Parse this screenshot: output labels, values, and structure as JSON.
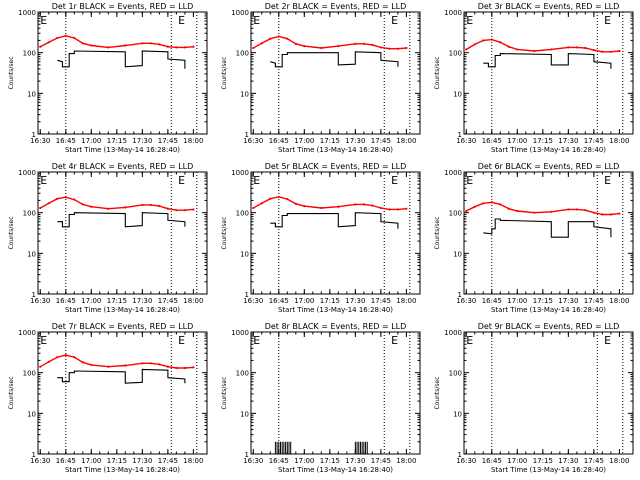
{
  "figure": {
    "time_labels": [
      "16:30",
      "16:45",
      "17:00",
      "17:15",
      "17:30",
      "17:45",
      "18:00"
    ],
    "y_tick_labels": [
      "1",
      "10",
      "100",
      "1000"
    ],
    "ylabel": "Counts/sec",
    "xlabel": "Start Time (13-May-14 16:28:40)",
    "marker_letter": "E"
  },
  "colors": {
    "events": "#000000",
    "lld": "#ff0000",
    "axes": "#000000"
  },
  "chart_data": [
    {
      "type": "line",
      "title": "Det 1r BLACK = Events, RED = LLD",
      "x_range": [
        "16:28:40",
        "18:08:00"
      ],
      "y_scale": "log",
      "ylim": [
        1,
        1000
      ],
      "marker_lines": [
        "16:45",
        "17:47",
        "18:02"
      ],
      "e_markers": [
        "16:30",
        "17:51"
      ],
      "series": [
        {
          "name": "LLD",
          "color": "#ff0000",
          "x": [
            "16:30",
            "16:35",
            "16:40",
            "16:45",
            "16:50",
            "16:55",
            "17:00",
            "17:10",
            "17:20",
            "17:30",
            "17:35",
            "17:40",
            "17:45",
            "17:50",
            "17:55",
            "18:00"
          ],
          "y": [
            140,
            180,
            230,
            260,
            230,
            170,
            150,
            135,
            150,
            170,
            170,
            160,
            140,
            135,
            135,
            140
          ]
        },
        {
          "name": "Events",
          "color": "#000000",
          "x": [
            "16:40",
            "16:43",
            "16:43",
            "16:47",
            "16:47",
            "16:50",
            "16:50",
            "17:20",
            "17:20",
            "17:30",
            "17:30",
            "17:45",
            "17:45",
            "17:55",
            "17:55"
          ],
          "y": [
            65,
            60,
            45,
            45,
            95,
            95,
            110,
            105,
            45,
            48,
            110,
            105,
            70,
            65,
            40
          ]
        }
      ]
    },
    {
      "type": "line",
      "title": "Det 2r BLACK = Events, RED = LLD",
      "x_range": [
        "16:28:40",
        "18:08:00"
      ],
      "y_scale": "log",
      "ylim": [
        1,
        1000
      ],
      "marker_lines": [
        "16:45",
        "17:47",
        "18:02"
      ],
      "e_markers": [
        "16:30",
        "17:51"
      ],
      "series": [
        {
          "name": "LLD",
          "color": "#ff0000",
          "x": [
            "16:30",
            "16:35",
            "16:40",
            "16:45",
            "16:50",
            "16:55",
            "17:00",
            "17:10",
            "17:20",
            "17:30",
            "17:35",
            "17:40",
            "17:45",
            "17:50",
            "17:55",
            "18:00"
          ],
          "y": [
            130,
            170,
            220,
            250,
            220,
            165,
            145,
            130,
            145,
            165,
            165,
            155,
            135,
            125,
            125,
            130
          ]
        },
        {
          "name": "Events",
          "color": "#000000",
          "x": [
            "16:40",
            "16:43",
            "16:43",
            "16:47",
            "16:47",
            "16:50",
            "16:50",
            "17:20",
            "17:20",
            "17:30",
            "17:30",
            "17:45",
            "17:45",
            "17:55",
            "17:55"
          ],
          "y": [
            60,
            55,
            45,
            45,
            90,
            90,
            100,
            100,
            50,
            52,
            105,
            100,
            65,
            60,
            45
          ]
        }
      ]
    },
    {
      "type": "line",
      "title": "Det 3r BLACK = Events, RED = LLD",
      "x_range": [
        "16:28:40",
        "18:08:00"
      ],
      "y_scale": "log",
      "ylim": [
        1,
        1000
      ],
      "marker_lines": [
        "16:45",
        "17:47",
        "18:02"
      ],
      "e_markers": [
        "16:30",
        "17:51"
      ],
      "series": [
        {
          "name": "LLD",
          "color": "#ff0000",
          "x": [
            "16:30",
            "16:35",
            "16:40",
            "16:45",
            "16:50",
            "16:55",
            "17:00",
            "17:10",
            "17:20",
            "17:30",
            "17:35",
            "17:40",
            "17:45",
            "17:50",
            "17:55",
            "18:00"
          ],
          "y": [
            120,
            160,
            200,
            210,
            180,
            140,
            120,
            110,
            120,
            135,
            135,
            130,
            115,
            105,
            105,
            110
          ]
        },
        {
          "name": "Events",
          "color": "#000000",
          "x": [
            "16:40",
            "16:43",
            "16:43",
            "16:47",
            "16:47",
            "16:50",
            "16:50",
            "17:20",
            "17:20",
            "17:30",
            "17:30",
            "17:45",
            "17:45",
            "17:55",
            "17:55"
          ],
          "y": [
            55,
            55,
            45,
            45,
            85,
            85,
            95,
            90,
            50,
            50,
            95,
            90,
            60,
            55,
            40
          ]
        }
      ]
    },
    {
      "type": "line",
      "title": "Det 4r BLACK = Events, RED = LLD",
      "x_range": [
        "16:28:40",
        "18:08:00"
      ],
      "y_scale": "log",
      "ylim": [
        1,
        1000
      ],
      "marker_lines": [
        "16:45",
        "17:47",
        "18:02"
      ],
      "e_markers": [
        "16:30",
        "17:51"
      ],
      "series": [
        {
          "name": "LLD",
          "color": "#ff0000",
          "x": [
            "16:30",
            "16:35",
            "16:40",
            "16:45",
            "16:50",
            "16:55",
            "17:00",
            "17:10",
            "17:20",
            "17:30",
            "17:35",
            "17:40",
            "17:45",
            "17:50",
            "17:55",
            "18:00"
          ],
          "y": [
            130,
            170,
            220,
            240,
            210,
            160,
            140,
            125,
            135,
            155,
            155,
            145,
            125,
            115,
            115,
            120
          ]
        },
        {
          "name": "Events",
          "color": "#000000",
          "x": [
            "16:40",
            "16:43",
            "16:43",
            "16:47",
            "16:47",
            "16:50",
            "16:50",
            "17:20",
            "17:20",
            "17:30",
            "17:30",
            "17:45",
            "17:45",
            "17:55",
            "17:55"
          ],
          "y": [
            60,
            60,
            45,
            45,
            90,
            90,
            100,
            95,
            45,
            48,
            100,
            95,
            65,
            60,
            45
          ]
        }
      ]
    },
    {
      "type": "line",
      "title": "Det 5r BLACK = Events, RED = LLD",
      "x_range": [
        "16:28:40",
        "18:08:00"
      ],
      "y_scale": "log",
      "ylim": [
        1,
        1000
      ],
      "marker_lines": [
        "16:45",
        "17:47",
        "18:02"
      ],
      "e_markers": [
        "16:30",
        "17:51"
      ],
      "series": [
        {
          "name": "LLD",
          "color": "#ff0000",
          "x": [
            "16:30",
            "16:35",
            "16:40",
            "16:45",
            "16:50",
            "16:55",
            "17:00",
            "17:10",
            "17:20",
            "17:30",
            "17:35",
            "17:40",
            "17:45",
            "17:50",
            "17:55",
            "18:00"
          ],
          "y": [
            130,
            170,
            220,
            245,
            215,
            165,
            145,
            130,
            140,
            160,
            160,
            150,
            130,
            120,
            120,
            125
          ]
        },
        {
          "name": "Events",
          "color": "#000000",
          "x": [
            "16:40",
            "16:43",
            "16:43",
            "16:47",
            "16:47",
            "16:50",
            "16:50",
            "17:20",
            "17:20",
            "17:30",
            "17:30",
            "17:45",
            "17:45",
            "17:55",
            "17:55"
          ],
          "y": [
            55,
            55,
            45,
            45,
            85,
            85,
            95,
            95,
            45,
            48,
            100,
            95,
            60,
            55,
            40
          ]
        }
      ]
    },
    {
      "type": "line",
      "title": "Det 6r BLACK = Events, RED = LLD",
      "x_range": [
        "16:28:40",
        "18:08:00"
      ],
      "y_scale": "log",
      "ylim": [
        1,
        1000
      ],
      "marker_lines": [
        "16:45",
        "17:47",
        "18:02"
      ],
      "e_markers": [
        "16:30",
        "17:51"
      ],
      "series": [
        {
          "name": "LLD",
          "color": "#ff0000",
          "x": [
            "16:30",
            "16:35",
            "16:40",
            "16:45",
            "16:50",
            "16:55",
            "17:00",
            "17:10",
            "17:20",
            "17:30",
            "17:35",
            "17:40",
            "17:45",
            "17:50",
            "17:55",
            "18:00"
          ],
          "y": [
            110,
            140,
            170,
            180,
            160,
            125,
            110,
            100,
            105,
            120,
            120,
            115,
            100,
            90,
            90,
            95
          ]
        },
        {
          "name": "Events",
          "color": "#000000",
          "x": [
            "16:40",
            "16:45",
            "16:45",
            "16:47",
            "16:47",
            "16:50",
            "16:50",
            "17:20",
            "17:20",
            "17:30",
            "17:30",
            "17:45",
            "17:45",
            "17:55",
            "17:55"
          ],
          "y": [
            32,
            30,
            40,
            40,
            70,
            70,
            65,
            60,
            25,
            25,
            60,
            60,
            45,
            40,
            25
          ]
        }
      ]
    },
    {
      "type": "line",
      "title": "Det 7r BLACK = Events, RED = LLD",
      "x_range": [
        "16:28:40",
        "18:08:00"
      ],
      "y_scale": "log",
      "ylim": [
        1,
        1000
      ],
      "marker_lines": [
        "16:45",
        "17:47",
        "18:02"
      ],
      "e_markers": [
        "16:30",
        "17:51"
      ],
      "series": [
        {
          "name": "LLD",
          "color": "#ff0000",
          "x": [
            "16:30",
            "16:35",
            "16:40",
            "16:45",
            "16:50",
            "16:55",
            "17:00",
            "17:10",
            "17:20",
            "17:30",
            "17:35",
            "17:40",
            "17:45",
            "17:50",
            "17:55",
            "18:00"
          ],
          "y": [
            140,
            185,
            240,
            270,
            240,
            180,
            155,
            140,
            150,
            170,
            170,
            160,
            140,
            130,
            130,
            135
          ]
        },
        {
          "name": "Events",
          "color": "#000000",
          "x": [
            "16:40",
            "16:43",
            "16:43",
            "16:47",
            "16:47",
            "16:50",
            "16:50",
            "17:20",
            "17:20",
            "17:30",
            "17:30",
            "17:45",
            "17:45",
            "17:55",
            "17:55"
          ],
          "y": [
            75,
            75,
            60,
            60,
            100,
            100,
            110,
            105,
            55,
            58,
            120,
            115,
            75,
            70,
            55
          ]
        }
      ]
    },
    {
      "type": "line",
      "title": "Det 8r BLACK = Events, RED = LLD",
      "x_range": [
        "16:28:40",
        "18:08:00"
      ],
      "y_scale": "log",
      "ylim": [
        1,
        1000
      ],
      "marker_lines": [
        "16:45",
        "17:47",
        "18:02"
      ],
      "e_markers": [
        "16:30",
        "17:51"
      ],
      "series": [
        {
          "name": "Events",
          "color": "#000000",
          "spikes": true,
          "x": [
            "16:43",
            "16:44",
            "16:45",
            "16:46",
            "16:47",
            "16:48",
            "16:49",
            "16:50",
            "16:51",
            "16:52",
            "17:30",
            "17:31",
            "17:32",
            "17:33",
            "17:34",
            "17:35",
            "17:36",
            "17:37"
          ],
          "y": [
            2,
            2,
            2,
            2,
            2,
            2,
            2,
            2,
            2,
            2,
            2,
            2,
            2,
            2,
            2,
            2,
            2,
            2
          ]
        }
      ]
    },
    {
      "type": "line",
      "title": "Det 9r BLACK = Events, RED = LLD",
      "x_range": [
        "16:28:40",
        "18:08:00"
      ],
      "y_scale": "log",
      "ylim": [
        1,
        1000
      ],
      "marker_lines": [
        "16:45",
        "17:47",
        "18:02"
      ],
      "e_markers": [
        "16:30",
        "17:51"
      ],
      "series": []
    }
  ]
}
